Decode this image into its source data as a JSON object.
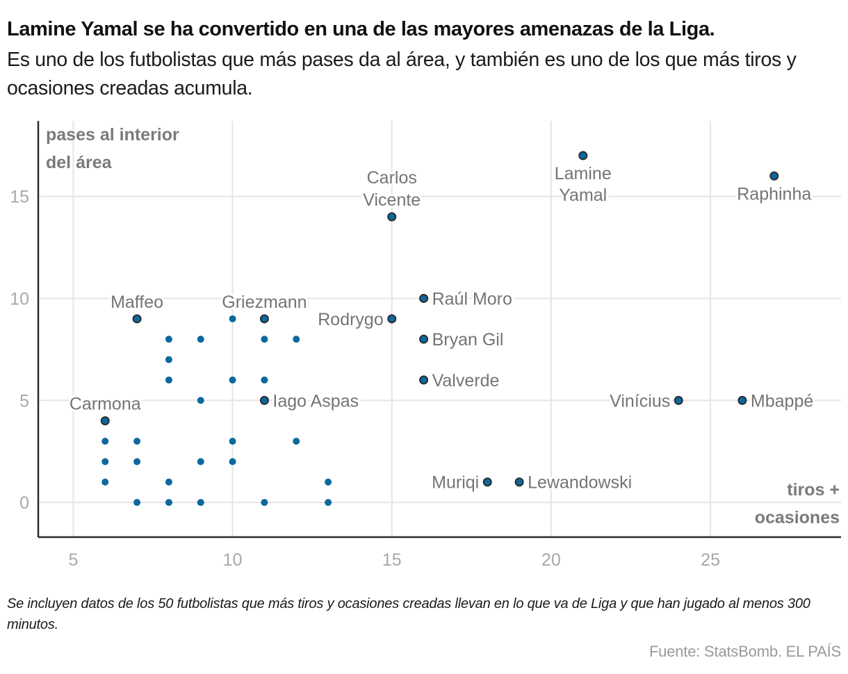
{
  "header": {
    "title": "Lamine Yamal se ha convertido en una de las mayores amenazas de la Liga.",
    "subtitle": "Es uno de los futbolistas que más pases da al área, y también es uno de los que más tiros y ocasiones creadas acumula."
  },
  "footer": {
    "note": "Se incluyen datos de los 50 futbolistas que más tiros y ocasiones creadas llevan en lo que va de Liga y que han jugado al menos 300 minutos.",
    "source": "Fuente: StatsBomb. EL PAÍS"
  },
  "colors": {
    "point_fill": "#0b69a0",
    "point_stroke": "#2b2b2b",
    "grid": "#e5e5e5",
    "axis": "#2b2b2b",
    "label": "#747474",
    "tick": "#a8a8a8"
  },
  "chart_data": {
    "type": "scatter",
    "title": "Lamine Yamal se ha convertido en una de las mayores amenazas de la Liga.",
    "xlabel": "tiros + ocasiones",
    "ylabel": "pases al interior del área",
    "xlabel_lines": [
      "tiros +",
      "ocasiones"
    ],
    "ylabel_lines": [
      "pases al interior",
      "del área"
    ],
    "xlim": [
      3.9,
      29.1
    ],
    "ylim": [
      -1.7,
      18.7
    ],
    "xticks": [
      5,
      10,
      15,
      20,
      25
    ],
    "yticks": [
      0,
      5,
      10,
      15
    ],
    "grid": true,
    "labeled_points": [
      {
        "name": "Lamine Yamal",
        "lines": [
          "Lamine",
          "Yamal"
        ],
        "x": 21,
        "y": 17,
        "label_pos": "below"
      },
      {
        "name": "Raphinha",
        "lines": [
          "Raphinha"
        ],
        "x": 27,
        "y": 16,
        "label_pos": "below"
      },
      {
        "name": "Carlos Vicente",
        "lines": [
          "Carlos",
          "Vicente"
        ],
        "x": 15,
        "y": 14,
        "label_pos": "above"
      },
      {
        "name": "Raúl Moro",
        "lines": [
          "Raúl Moro"
        ],
        "x": 16,
        "y": 10,
        "label_pos": "right"
      },
      {
        "name": "Maffeo",
        "lines": [
          "Maffeo"
        ],
        "x": 7,
        "y": 9,
        "label_pos": "above"
      },
      {
        "name": "Griezmann",
        "lines": [
          "Griezmann"
        ],
        "x": 11,
        "y": 9,
        "label_pos": "above"
      },
      {
        "name": "Rodrygo",
        "lines": [
          "Rodrygo"
        ],
        "x": 15,
        "y": 9,
        "label_pos": "left"
      },
      {
        "name": "Bryan Gil",
        "lines": [
          "Bryan Gil"
        ],
        "x": 16,
        "y": 8,
        "label_pos": "right"
      },
      {
        "name": "Valverde",
        "lines": [
          "Valverde"
        ],
        "x": 16,
        "y": 6,
        "label_pos": "right"
      },
      {
        "name": "Iago Aspas",
        "lines": [
          "Iago Aspas"
        ],
        "x": 11,
        "y": 5,
        "label_pos": "right"
      },
      {
        "name": "Vinícius",
        "lines": [
          "Vinícius"
        ],
        "x": 24,
        "y": 5,
        "label_pos": "left"
      },
      {
        "name": "Mbappé",
        "lines": [
          "Mbappé"
        ],
        "x": 26,
        "y": 5,
        "label_pos": "right"
      },
      {
        "name": "Carmona",
        "lines": [
          "Carmona"
        ],
        "x": 6,
        "y": 4,
        "label_pos": "above"
      },
      {
        "name": "Muriqi",
        "lines": [
          "Muriqi"
        ],
        "x": 18,
        "y": 1,
        "label_pos": "left"
      },
      {
        "name": "Lewandowski",
        "lines": [
          "Lewandowski"
        ],
        "x": 19,
        "y": 1,
        "label_pos": "right"
      }
    ],
    "other_points": [
      {
        "x": 10,
        "y": 9
      },
      {
        "x": 8,
        "y": 8
      },
      {
        "x": 9,
        "y": 8
      },
      {
        "x": 11,
        "y": 8
      },
      {
        "x": 12,
        "y": 8
      },
      {
        "x": 8,
        "y": 7
      },
      {
        "x": 8,
        "y": 6
      },
      {
        "x": 10,
        "y": 6
      },
      {
        "x": 11,
        "y": 6
      },
      {
        "x": 9,
        "y": 5
      },
      {
        "x": 6,
        "y": 3
      },
      {
        "x": 7,
        "y": 3
      },
      {
        "x": 10,
        "y": 3
      },
      {
        "x": 12,
        "y": 3
      },
      {
        "x": 6,
        "y": 2
      },
      {
        "x": 7,
        "y": 2
      },
      {
        "x": 9,
        "y": 2
      },
      {
        "x": 10,
        "y": 2
      },
      {
        "x": 6,
        "y": 1
      },
      {
        "x": 8,
        "y": 1
      },
      {
        "x": 13,
        "y": 1
      },
      {
        "x": 7,
        "y": 0
      },
      {
        "x": 8,
        "y": 0
      },
      {
        "x": 9,
        "y": 0
      },
      {
        "x": 11,
        "y": 0
      },
      {
        "x": 13,
        "y": 0
      }
    ]
  }
}
